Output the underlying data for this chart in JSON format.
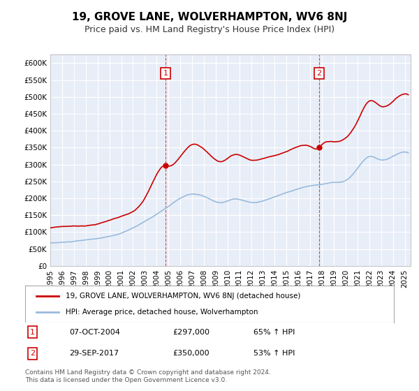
{
  "title": "19, GROVE LANE, WOLVERHAMPTON, WV6 8NJ",
  "subtitle": "Price paid vs. HM Land Registry's House Price Index (HPI)",
  "property_label": "19, GROVE LANE, WOLVERHAMPTON, WV6 8NJ (detached house)",
  "hpi_label": "HPI: Average price, detached house, Wolverhampton",
  "sale1_date": "07-OCT-2004",
  "sale1_price": "£297,000",
  "sale1_pct": "65% ↑ HPI",
  "sale2_date": "29-SEP-2017",
  "sale2_price": "£350,000",
  "sale2_pct": "53% ↑ HPI",
  "footnote": "Contains HM Land Registry data © Crown copyright and database right 2024.\nThis data is licensed under the Open Government Licence v3.0.",
  "property_color": "#cc0000",
  "hpi_color": "#99bbdd",
  "background_color": "#e8eef8",
  "plot_bg": "#e8eef8",
  "ylim": [
    0,
    625000
  ],
  "yticks": [
    0,
    50000,
    100000,
    150000,
    200000,
    250000,
    300000,
    350000,
    400000,
    450000,
    500000,
    550000,
    600000
  ],
  "sale1_x_year": 2004.77,
  "sale2_x_year": 2017.75,
  "xmin": 1995.0,
  "xmax": 2025.5
}
